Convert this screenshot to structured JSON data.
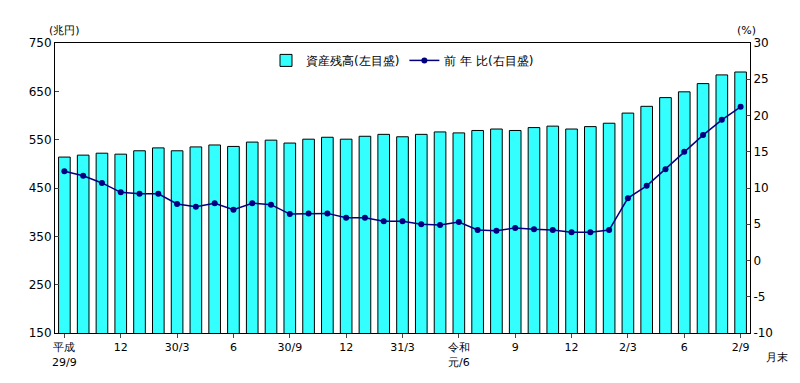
{
  "chart_data": {
    "type": "bar",
    "ylabel": "(兆円)",
    "y2label": "(%)",
    "xlabel": "月末",
    "categories": [
      "平成\n29/9",
      null,
      null,
      "12",
      null,
      null,
      "30/3",
      null,
      null,
      "6",
      null,
      null,
      "30/9",
      null,
      null,
      "12",
      null,
      null,
      "31/3",
      null,
      null,
      "令和\n元/6",
      null,
      null,
      "9",
      null,
      null,
      "12",
      null,
      null,
      "2/3",
      null,
      null,
      "6",
      null,
      null,
      "2/9"
    ],
    "series": [
      {
        "name": "資産残高(左目盛)",
        "type": "bar",
        "color": "#33ffff",
        "values": [
          514,
          518,
          522,
          520,
          527,
          533,
          527,
          535,
          539,
          536,
          545,
          549,
          543,
          551,
          555,
          551,
          557,
          561,
          556,
          561,
          566,
          564,
          569,
          572,
          569,
          575,
          578,
          572,
          577,
          584,
          605,
          619,
          637,
          649,
          666,
          684,
          690
        ]
      },
      {
        "name": "前 年 比(右目盛)",
        "type": "line",
        "axis": "y2",
        "color": "#000080",
        "marker": "circle",
        "line_style": "solid",
        "values": [
          12.3,
          11.7,
          10.7,
          9.4,
          9.2,
          9.2,
          7.8,
          7.4,
          7.9,
          7.0,
          7.9,
          7.7,
          6.4,
          6.5,
          6.5,
          5.9,
          5.9,
          5.4,
          5.4,
          5.0,
          4.9,
          5.3,
          4.2,
          4.1,
          4.5,
          4.3,
          4.2,
          3.9,
          3.9,
          4.2,
          8.6,
          10.3,
          12.6,
          15.0,
          17.3,
          19.4,
          21.2
        ]
      }
    ],
    "ylim": [
      150,
      750
    ],
    "yticks": [
      150,
      250,
      350,
      450,
      550,
      650,
      750
    ],
    "y2lim": [
      -10,
      30
    ],
    "y2ticks": [
      -10,
      -5,
      0,
      5,
      10,
      15,
      20,
      25,
      30
    ],
    "grid": false,
    "legend": "top"
  }
}
